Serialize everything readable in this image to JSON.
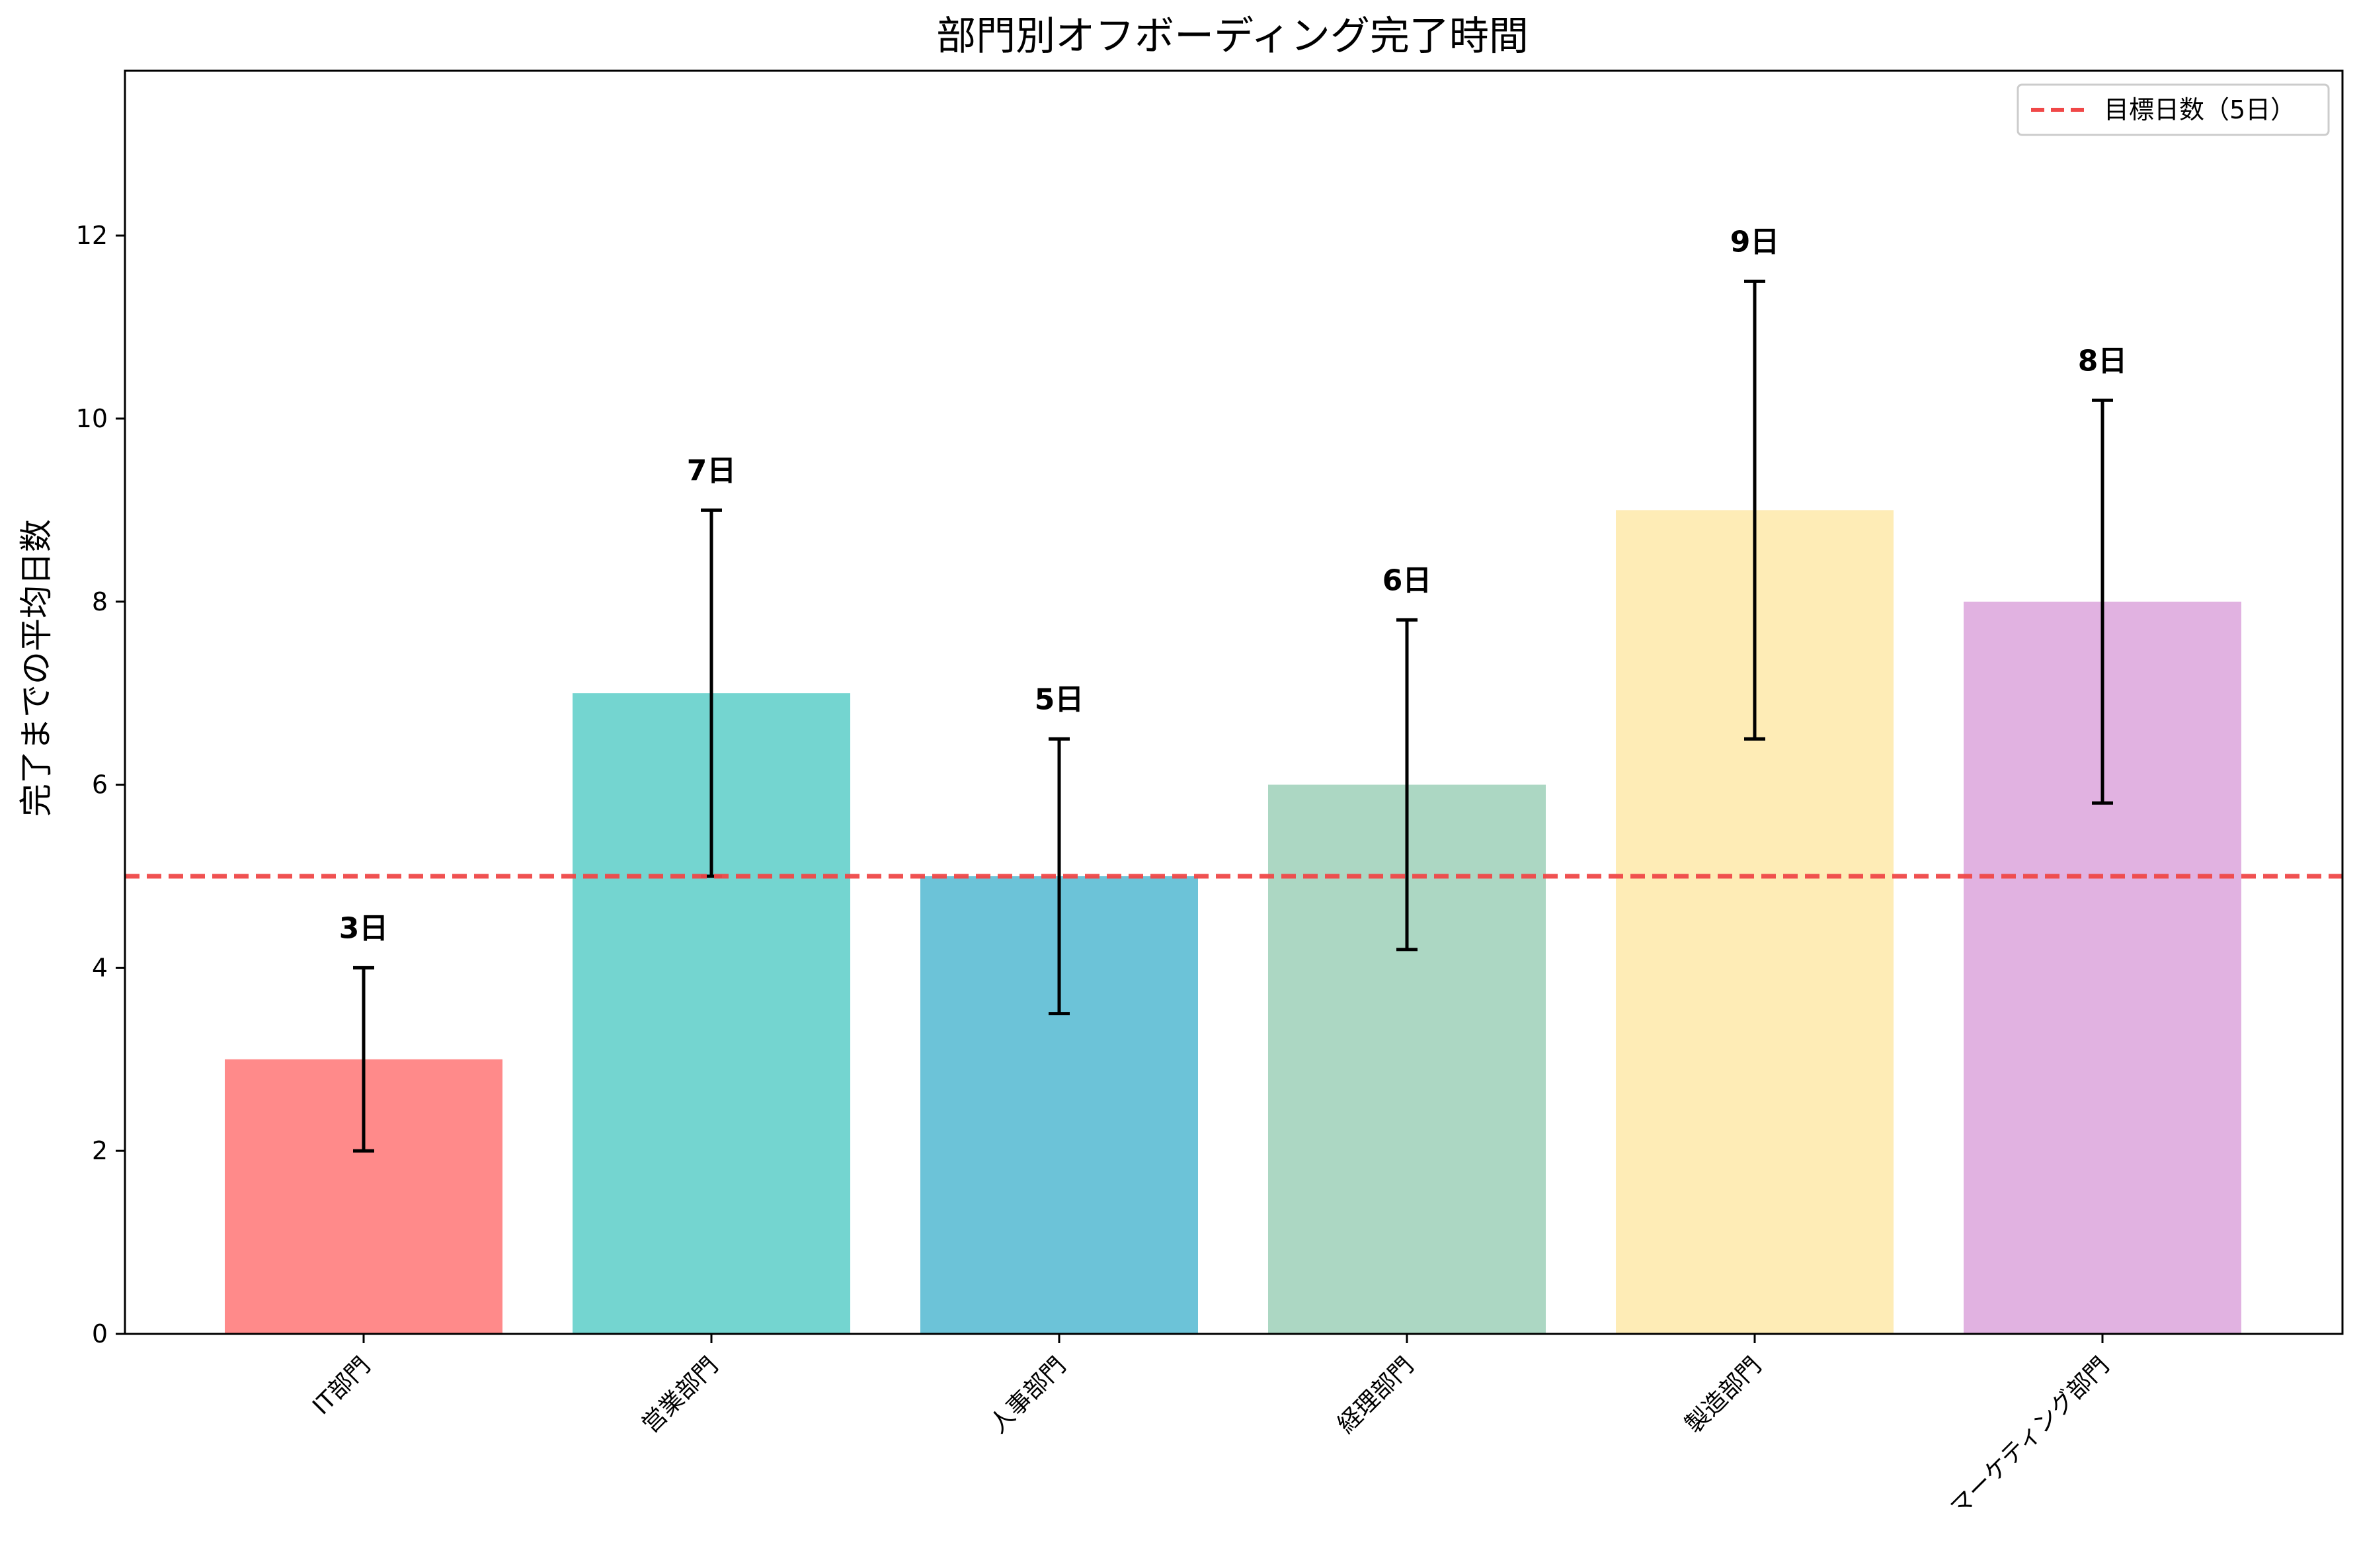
{
  "chart_data": {
    "type": "bar",
    "title": "部門別オフボーディング完了時間",
    "xlabel": "",
    "ylabel": "完了までの平均日数",
    "categories": [
      "IT部門",
      "営業部門",
      "人事部門",
      "経理部門",
      "製造部門",
      "マーケティング部門"
    ],
    "values": [
      3,
      7,
      5,
      6,
      9,
      8
    ],
    "errors": [
      1,
      2,
      1.5,
      1.8,
      2.5,
      2.2
    ],
    "data_labels": [
      "3日",
      "7日",
      "5日",
      "6日",
      "9日",
      "8日"
    ],
    "colors": [
      "#FF8A8A",
      "#74D5D0",
      "#6CC3D8",
      "#ACD7C3",
      "#FEECB6",
      "#E1B2E1"
    ],
    "ylim": [
      0,
      13.8
    ],
    "yticks": [
      "0",
      "2",
      "4",
      "6",
      "8",
      "10",
      "12"
    ],
    "grid": false,
    "reference_line": {
      "value": 5,
      "label": "目標日数（5日）",
      "color": "#F04848",
      "style": "dashed"
    },
    "legend": {
      "placement": "top-right"
    }
  }
}
